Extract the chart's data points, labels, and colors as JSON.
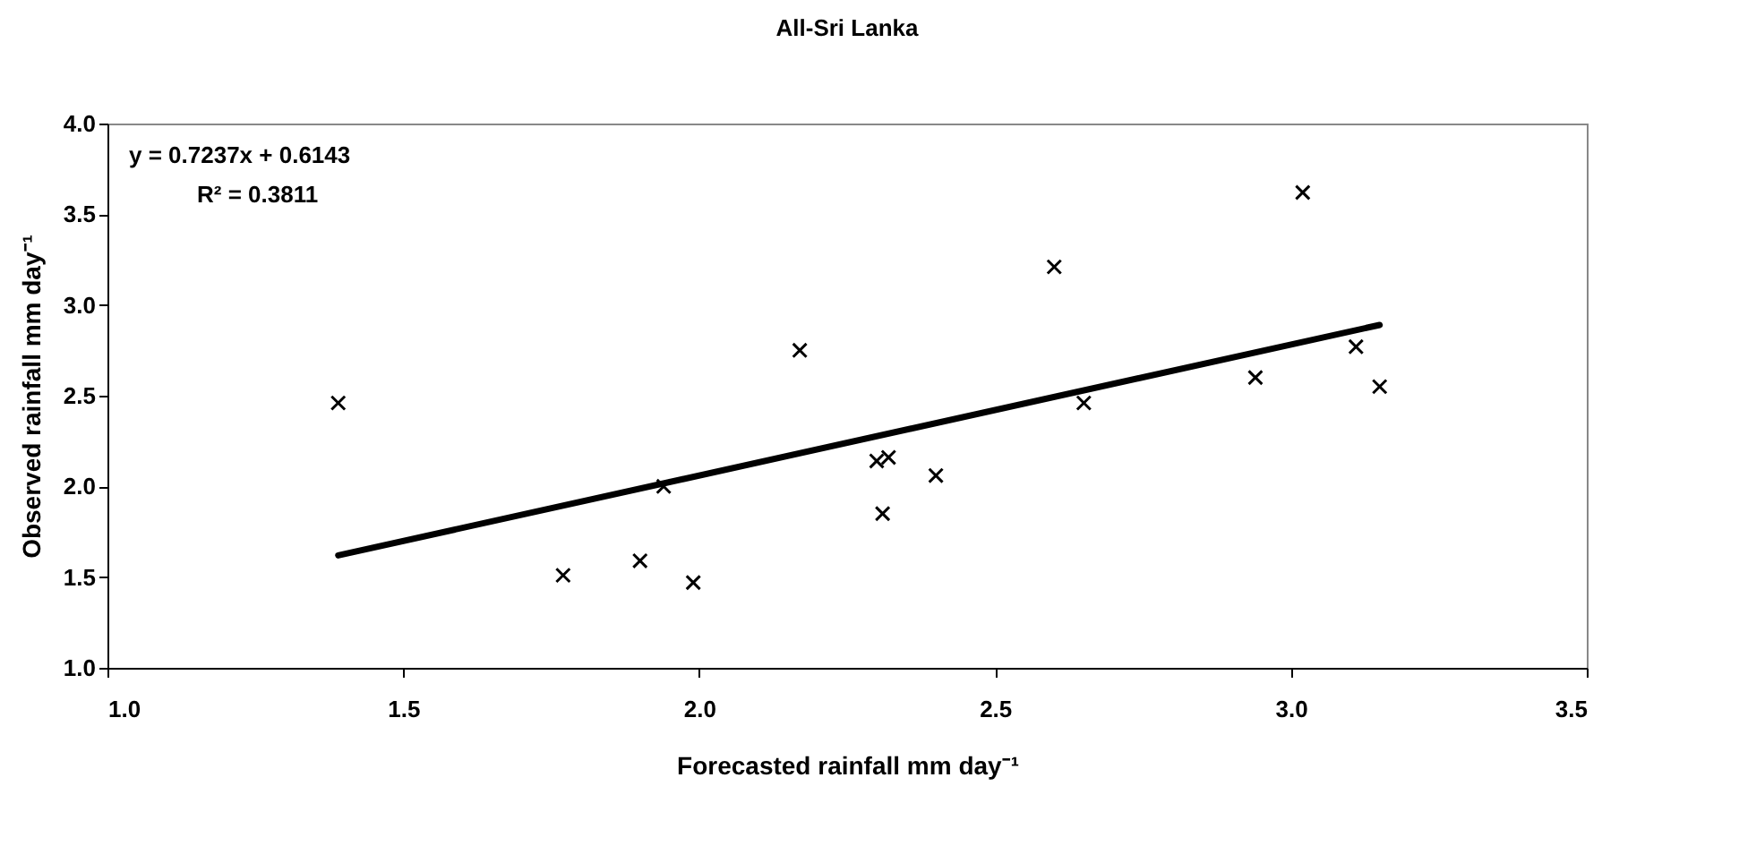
{
  "chart_data": {
    "type": "scatter",
    "title": "All-Sri Lanka",
    "xlabel": "Forecasted rainfall mm day⁻¹",
    "ylabel": "Observed rainfall mm day⁻¹",
    "xlim": [
      1.0,
      3.5
    ],
    "xticks": [
      {
        "value": 1,
        "label": "1.0"
      },
      {
        "value": 1.5,
        "label": "1.5"
      },
      {
        "value": 2,
        "label": "2.0"
      },
      {
        "value": 2.5,
        "label": "2.5"
      },
      {
        "value": 3,
        "label": "3.0"
      },
      {
        "value": 3.5,
        "label": "3.5"
      }
    ],
    "ylim": [
      1.0,
      4.0
    ],
    "yticks": [
      {
        "value": 1,
        "label": "1.0"
      },
      {
        "value": 1.5,
        "label": "1.5"
      },
      {
        "value": 2,
        "label": "2.0"
      },
      {
        "value": 2.5,
        "label": "2.5"
      },
      {
        "value": 3,
        "label": "3.0"
      },
      {
        "value": 3.5,
        "label": "3.5"
      },
      {
        "value": 4,
        "label": "4.0"
      }
    ],
    "grid": false,
    "series": [
      {
        "marker": "cross",
        "color": "#000000",
        "x": [
          1.39,
          1.77,
          1.9,
          1.94,
          1.99,
          2.17,
          2.3,
          2.32,
          2.31,
          2.4,
          2.6,
          2.65,
          2.94,
          3.02,
          3.11,
          3.15
        ],
        "values": [
          2.46,
          1.51,
          1.59,
          2.0,
          1.47,
          2.75,
          2.14,
          2.16,
          1.85,
          2.06,
          3.21,
          2.46,
          2.6,
          3.62,
          2.77,
          2.55
        ]
      },
      {
        "type": "line",
        "color": "#000000",
        "line_style": "solid",
        "x": [
          1.39,
          3.15
        ],
        "values": [
          1.62,
          2.89
        ]
      }
    ],
    "annotations": [
      "y = 0.7237x + 0.6143",
      "R² = 0.3811"
    ]
  }
}
